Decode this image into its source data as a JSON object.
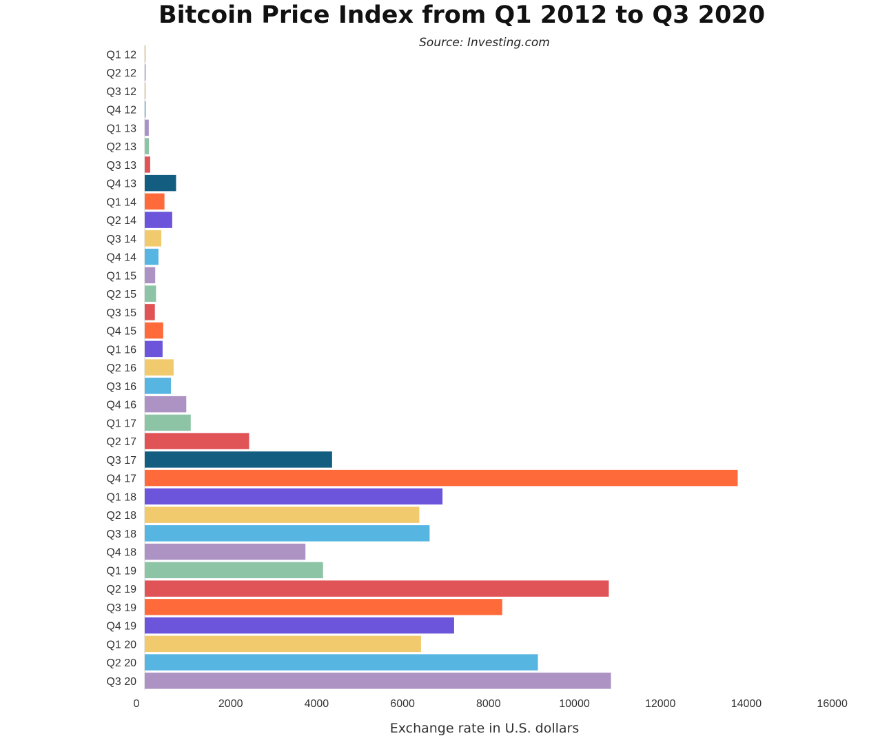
{
  "chart_data": {
    "type": "bar",
    "orientation": "horizontal",
    "title": "Bitcoin Price Index from Q1 2012 to Q3 2020",
    "subtitle": "Source: Investing.com",
    "xlabel": "Exchange rate in U.S. dollars",
    "ylabel": "",
    "xlim": [
      0,
      16000
    ],
    "xticks": [
      "0",
      "2000",
      "4000",
      "6000",
      "8000",
      "10000",
      "12000",
      "14000",
      "16000"
    ],
    "grid": false,
    "legend": "none",
    "categories": [
      "Q1 12",
      "Q2 12",
      "Q3 12",
      "Q4 12",
      "Q1 13",
      "Q2 13",
      "Q3 13",
      "Q4 13",
      "Q1 14",
      "Q2 14",
      "Q3 14",
      "Q4 14",
      "Q1 15",
      "Q2 15",
      "Q3 15",
      "Q4 15",
      "Q1 16",
      "Q2 16",
      "Q3 16",
      "Q4 16",
      "Q1 17",
      "Q2 17",
      "Q3 17",
      "Q4 17",
      "Q1 18",
      "Q2 18",
      "Q3 18",
      "Q4 18",
      "Q1 19",
      "Q2 19",
      "Q3 19",
      "Q4 19",
      "Q1 20",
      "Q2 20",
      "Q3 20"
    ],
    "values": [
      5,
      7,
      12,
      13,
      94,
      97,
      127,
      730,
      459,
      640,
      386,
      320,
      244,
      264,
      236,
      430,
      416,
      673,
      609,
      967,
      1071,
      2430,
      4360,
      13800,
      6930,
      6390,
      6630,
      3740,
      4150,
      10800,
      8320,
      7200,
      6430,
      9150,
      10850
    ],
    "colors": [
      "#F8C471",
      "#AF9FC8",
      "#F2C26F",
      "#5BB3DD",
      "#A993C5",
      "#8EC4A6",
      "#E05458",
      "#135D80",
      "#FF6A3A",
      "#6C55DB",
      "#F2CA6E",
      "#56B5E1",
      "#AC93C4",
      "#8EC4A6",
      "#E05458",
      "#FF6A3A",
      "#6C55DB",
      "#F2CA6E",
      "#56B5E1",
      "#AC93C4",
      "#8EC4A6",
      "#E05458",
      "#135D80",
      "#FF6A3A",
      "#6C55DB",
      "#F2CA6E",
      "#56B5E1",
      "#AC93C4",
      "#8EC4A6",
      "#E05458",
      "#FF6A3A",
      "#6C55DB",
      "#F2CA6E",
      "#56B5E1",
      "#AC93C4"
    ]
  }
}
